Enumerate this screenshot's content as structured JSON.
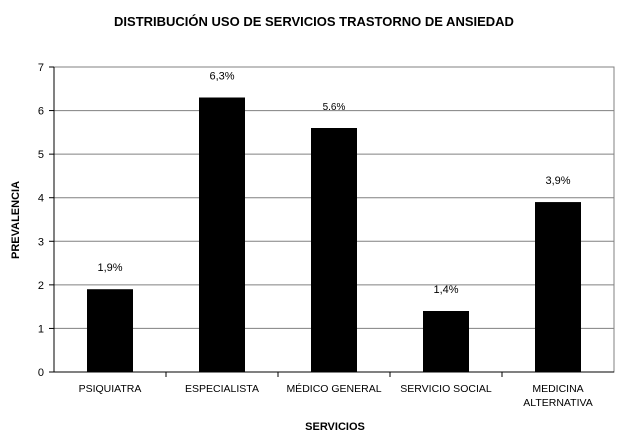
{
  "chart_data": {
    "type": "bar",
    "title": "DISTRIBUCIÓN USO DE SERVICIOS TRASTORNO DE ANSIEDAD",
    "xlabel": "SERVICIOS",
    "ylabel": "PREVALENCIA",
    "ylim": [
      0,
      7
    ],
    "yticks": [
      "0",
      "1",
      "2",
      "3",
      "4",
      "5",
      "6",
      "7"
    ],
    "grid": true,
    "legend": "none",
    "bar_color": "#000000",
    "categories": [
      [
        "PSIQUIATRA"
      ],
      [
        "ESPECIALISTA"
      ],
      [
        "MÉDICO GENERAL"
      ],
      [
        "SERVICIO SOCIAL"
      ],
      [
        "MEDICINA",
        "ALTERNATIVA"
      ]
    ],
    "values": [
      1.9,
      6.3,
      5.6,
      1.4,
      3.9
    ],
    "data_labels": [
      "1,9%",
      "6,3%",
      "5.6%",
      "1,4%",
      "3,9%"
    ]
  }
}
